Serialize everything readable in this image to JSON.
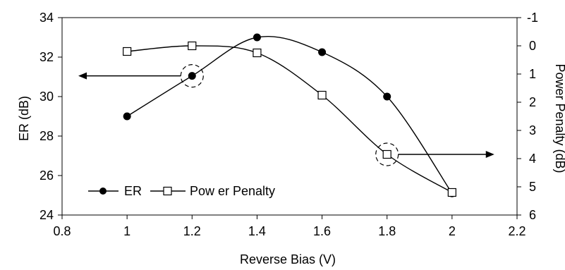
{
  "chart_data": {
    "type": "line",
    "x": [
      1.0,
      1.2,
      1.4,
      1.6,
      1.8,
      2.0
    ],
    "xlabel": "Reverse Bias (V)",
    "ylabel": "ER (dB)",
    "y2label": "Power Penalty (dB)",
    "xlim": [
      0.8,
      2.2
    ],
    "ylim": [
      24,
      34
    ],
    "y2lim": [
      -1,
      6
    ],
    "y2_inverted": true,
    "x_ticks": [
      "0.8",
      "1",
      "1.2",
      "1.4",
      "1.6",
      "1.8",
      "2",
      "2.2"
    ],
    "y_ticks": [
      "24",
      "26",
      "28",
      "30",
      "32",
      "34"
    ],
    "y2_ticks": [
      "-1",
      "0",
      "1",
      "2",
      "3",
      "4",
      "5",
      "6"
    ],
    "grid": false,
    "legend_position": "bottom-left",
    "series": [
      {
        "name": "ER",
        "axis": "left",
        "marker": "filled-circle",
        "values": [
          29.0,
          31.05,
          33.0,
          32.25,
          30.0,
          25.1
        ]
      },
      {
        "name": "Pow er Penalty",
        "axis": "right",
        "marker": "open-square",
        "values": [
          0.2,
          0.0,
          0.25,
          1.75,
          3.85,
          5.2
        ]
      }
    ],
    "annotations": [
      {
        "type": "circled-point-arrow",
        "series": "ER",
        "x": 1.2,
        "direction": "left",
        "meaning": "left axis"
      },
      {
        "type": "circled-point-arrow",
        "series": "Pow er Penalty",
        "x": 1.8,
        "direction": "right",
        "meaning": "right axis"
      }
    ],
    "colors": {
      "line": "#000000",
      "background": "#ffffff"
    }
  }
}
